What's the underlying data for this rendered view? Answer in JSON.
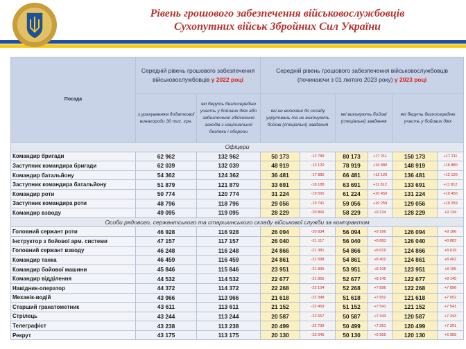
{
  "header": {
    "title_lines": [
      "Рівень грошового забезпечення військовослужбовців",
      "Сухопутних військ Збройних Сил України"
    ]
  },
  "table": {
    "columns": {
      "position": "Посада",
      "group_2022": {
        "text": "Середній рівень грошового забезпечення військовослужбовців",
        "emphasis": "у 2022 році"
      },
      "group_2023": {
        "text": "Середній рівень грошового забезпечення військовослужбовців (починаючи з 01 лютого 2023 року)",
        "emphasis": "у 2023 році"
      },
      "sub": [
        "з урахуванням додаткової винагороди 30 тис. грн.",
        "які беруть безпосередню участь у бойових діях або забезпеченні здійснення заходів з національної безпеки і оборони",
        "які не включені до складу угруповань та не виконують бойові (спеціальні) завдання",
        "які виконують бойові (спеціальні) завдання",
        "які беруть безпосередню участь у бойових діях"
      ]
    },
    "sections": [
      {
        "title": "Офіцери",
        "rows": [
          [
            "Командир бригади",
            "62 962",
            "132 962",
            "50 173",
            "-12 789",
            "80 173",
            "+17 211",
            "150 173",
            "+17 211"
          ],
          [
            "Заступник командира бригади",
            "62 039",
            "132 039",
            "48 919",
            "-13 120",
            "78 919",
            "+16 880",
            "148 919",
            "+16 880"
          ],
          [
            "Командир батальйону",
            "54 362",
            "124 362",
            "36 481",
            "-17 880",
            "66 481",
            "+12 120",
            "136 481",
            "+12 120"
          ],
          [
            "Заступник командира батальйону",
            "51 879",
            "121 879",
            "33 691",
            "-18 188",
            "63 691",
            "+11 812",
            "133 691",
            "+11 812"
          ],
          [
            "Командир роти",
            "50 774",
            "120 774",
            "31 224",
            "-19 550",
            "61 224",
            "+10 450",
            "131 224",
            "+10 450"
          ],
          [
            "Заступник командира роти",
            "48 796",
            "118 796",
            "29 056",
            "-19 741",
            "59 056",
            "+10 259",
            "129 056",
            "+10 259"
          ],
          [
            "Командир взводу",
            "49 095",
            "119 095",
            "28 229",
            "-20 866",
            "58 229",
            "+9 134",
            "128 229",
            "+9 134"
          ]
        ]
      },
      {
        "title": "Особи рядового, сержантського та старшинського складу військової служби за контрактом",
        "rows": [
          [
            "Головний сержант роти",
            "46 928",
            "116 928",
            "26 094",
            "-20 834",
            "56 094",
            "+9 166",
            "126 094",
            "+9 166"
          ],
          [
            "Інструктор з бойової арм. системи",
            "47 157",
            "117 157",
            "26 040",
            "-21 117",
            "56 040",
            "+8 883",
            "126 040",
            "+8 883"
          ],
          [
            "Головний сержант взводу",
            "46 248",
            "116 248",
            "24 866",
            "-21 381",
            "54 866",
            "+8 619",
            "124 866",
            "+8 619"
          ],
          [
            "Командир танка",
            "46 459",
            "116 459",
            "24 861",
            "-21 598",
            "54 861",
            "+8 402",
            "124 861",
            "+8 402"
          ],
          [
            "Командир бойової машини",
            "45 846",
            "115 846",
            "23 951",
            "-21 895",
            "53 951",
            "+8 105",
            "123 951",
            "+8 105"
          ],
          [
            "Командир відділення",
            "44 532",
            "114 532",
            "22 677",
            "-21 855",
            "52 677",
            "+8 145",
            "122 677",
            "+8 145"
          ],
          [
            "Навідник-оператор",
            "44 372",
            "114 372",
            "22 268",
            "-22 104",
            "52 268",
            "+7 896",
            "122 268",
            "+7 896"
          ],
          [
            "Механік-водій",
            "43 966",
            "113 966",
            "21 618",
            "-22 348",
            "51 618",
            "+7 652",
            "121 618",
            "+7 652"
          ],
          [
            "Старший гранатометник",
            "43 611",
            "113 611",
            "21 152",
            "-22 459",
            "51 152",
            "+7 541",
            "121 152",
            "+7 541"
          ],
          [
            "Стрілець",
            "43 244",
            "113 244",
            "20 587",
            "-22 657",
            "50 587",
            "+7 343",
            "120 587",
            "+7 343"
          ],
          [
            "Телеграфіст",
            "43 238",
            "113 238",
            "20 499",
            "-22 739",
            "50 499",
            "+7 261",
            "120 499",
            "+7 261"
          ],
          [
            "Рекрут",
            "43 175",
            "113 175",
            "20 130",
            "-23 045",
            "50 130",
            "+6 955",
            "120 130",
            "+6 955"
          ]
        ]
      }
    ]
  }
}
